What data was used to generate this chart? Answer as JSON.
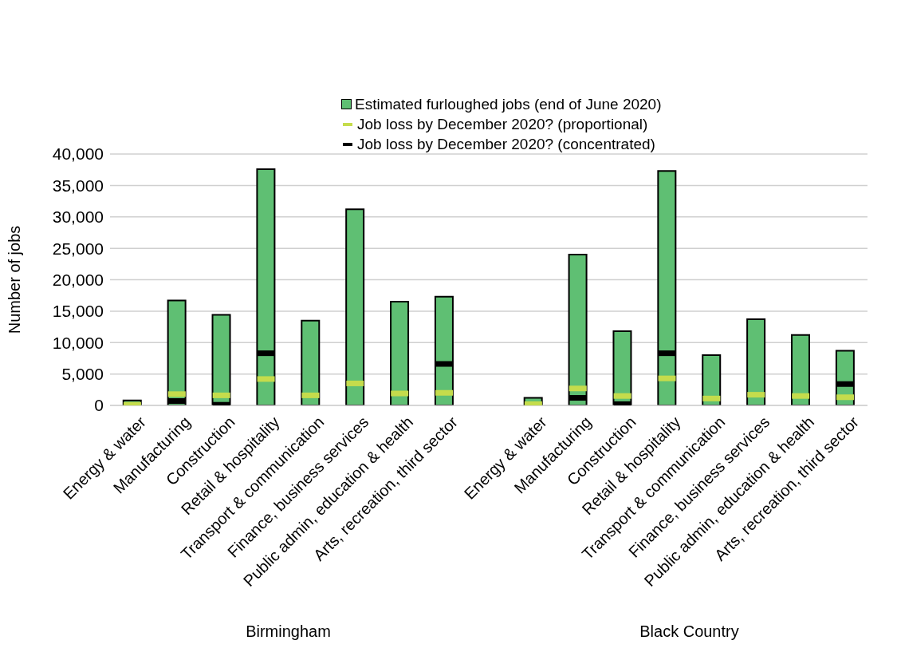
{
  "chart_data": {
    "type": "bar",
    "ylabel": "Number of jobs",
    "categories": [
      "Energy & water",
      "Manufacturing",
      "Construction",
      "Retail & hospitality",
      "Transport & communication",
      "Finance, business services",
      "Public admin, education & health",
      "Arts, recreation, third sector",
      null,
      "Energy & water",
      "Manufacturing",
      "Construction",
      "Retail & hospitality",
      "Transport & communication",
      "Finance, business services",
      "Public admin, education & health",
      "Arts, recreation, third sector"
    ],
    "series": [
      {
        "name": "Estimated furloughed jobs (end of June 2020)",
        "color": "#5fbf73",
        "values": [
          800,
          16700,
          14400,
          37600,
          13500,
          31200,
          16500,
          17300,
          null,
          1200,
          24000,
          11800,
          37300,
          8000,
          13700,
          11200,
          8700
        ]
      },
      {
        "name": "Job loss by December 2020? (proportional)",
        "type": "scatter",
        "color": "#c5dc4c",
        "values": [
          100,
          1800,
          1600,
          4200,
          1600,
          3500,
          1900,
          2000,
          null,
          200,
          2700,
          1500,
          4300,
          1100,
          1700,
          1500,
          1300
        ]
      },
      {
        "name": "Job loss by December 2020? (concentrated)",
        "type": "scatter",
        "color": "#000000",
        "values": [
          null,
          700,
          100,
          8300,
          null,
          null,
          null,
          6600,
          null,
          null,
          1200,
          200,
          8300,
          null,
          null,
          null,
          3400
        ]
      }
    ],
    "annotations": [
      "Birmingham",
      "Black Country"
    ],
    "ylim": [
      0,
      40000
    ],
    "yticks": [
      {
        "value": 0,
        "label": "0"
      },
      {
        "value": 5000,
        "label": "5,000"
      },
      {
        "value": 10000,
        "label": "10,000"
      },
      {
        "value": 15000,
        "label": "15,000"
      },
      {
        "value": 20000,
        "label": "20,000"
      },
      {
        "value": 25000,
        "label": "25,000"
      },
      {
        "value": 30000,
        "label": "30,000"
      },
      {
        "value": 35000,
        "label": "35,000"
      },
      {
        "value": 40000,
        "label": "40,000"
      }
    ],
    "grid": "y",
    "legend": "top"
  }
}
